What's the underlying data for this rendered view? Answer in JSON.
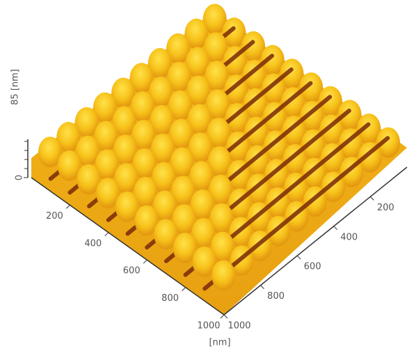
{
  "chart_data": {
    "type": "surface",
    "zlabel": "85 [nm]",
    "zticks": [
      0
    ],
    "xlabel": "[nm]",
    "xlim": [
      0,
      1000
    ],
    "xticks": [
      200,
      400,
      600,
      800,
      1000
    ],
    "ylim": [
      0,
      1000
    ],
    "yticks": [
      200,
      400,
      600,
      800,
      1000
    ]
  }
}
